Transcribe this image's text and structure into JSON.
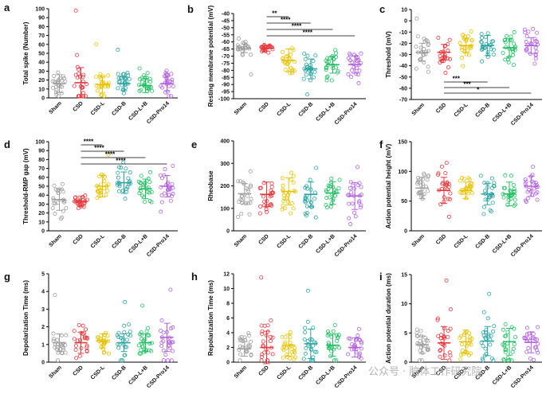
{
  "groups": [
    "Sham",
    "CSD",
    "CSD-L",
    "CSD-B",
    "CSD-L+B",
    "CSD-Pro14"
  ],
  "colors": [
    "#9e9e9e",
    "#e8383d",
    "#e8c200",
    "#2aa3a3",
    "#1fbf60",
    "#b35fe0"
  ],
  "watermark": "公众号 · 脑体工作研究院",
  "chart_data": [
    {
      "panel": "a",
      "type": "scatter",
      "ylabel": "Total spike (Number)",
      "ylim": [
        0,
        100
      ],
      "yticks": [
        0,
        10,
        20,
        30,
        40,
        50,
        60,
        70,
        80,
        90,
        100
      ],
      "means": [
        16,
        17,
        15,
        16,
        14,
        16
      ],
      "sds": [
        10,
        17,
        9,
        8,
        8,
        8
      ],
      "extremes": [
        [],
        [
          98
        ],
        [
          60
        ],
        [
          54
        ],
        [],
        []
      ],
      "sig": []
    },
    {
      "panel": "b",
      "type": "scatter",
      "ylabel": "Resting membrane potential (mV)",
      "ylim": [
        -100,
        -40
      ],
      "yticks": [
        -100,
        -95,
        -90,
        -85,
        -80,
        -75,
        -70,
        -65,
        -60,
        -55,
        -50,
        -45,
        -40
      ],
      "means": [
        -64.5,
        -64.5,
        -73,
        -79,
        -76,
        -76
      ],
      "sds": [
        3,
        2,
        8,
        7,
        6,
        6
      ],
      "extremes": [
        [
          -83
        ],
        [],
        [],
        [
          -97
        ],
        [],
        []
      ],
      "sig": [
        {
          "from": 1,
          "to": 2,
          "label": "**"
        },
        {
          "from": 1,
          "to": 3,
          "label": "****"
        },
        {
          "from": 1,
          "to": 4,
          "label": "****"
        },
        {
          "from": 1,
          "to": 5,
          "label": "****"
        }
      ]
    },
    {
      "panel": "c",
      "type": "scatter",
      "ylabel": "Threshold (mV)",
      "ylim": [
        -70,
        10
      ],
      "yticks": [
        -70,
        -60,
        -50,
        -40,
        -30,
        -20,
        -10,
        0,
        10
      ],
      "means": [
        -28,
        -28,
        -22,
        -22,
        -24,
        -22
      ],
      "sds": [
        8,
        7,
        6,
        9,
        8,
        7
      ],
      "extremes": [
        [
          2
        ],
        [],
        [],
        [],
        [],
        []
      ],
      "sig": [
        {
          "from": 1,
          "to": 3,
          "label": "***"
        },
        {
          "from": 1,
          "to": 4,
          "label": "***"
        },
        {
          "from": 1,
          "to": 5,
          "label": "*"
        }
      ]
    },
    {
      "panel": "d",
      "type": "scatter",
      "ylabel": "Threshold-RMP gap (mV)",
      "ylim": [
        0,
        100
      ],
      "yticks": [
        0,
        10,
        20,
        30,
        40,
        50,
        60,
        70,
        80,
        90,
        100
      ],
      "means": [
        35,
        33,
        50,
        54,
        47,
        50
      ],
      "sds": [
        12,
        6,
        12,
        12,
        11,
        12
      ],
      "extremes": [
        [],
        [],
        [],
        [],
        [],
        []
      ],
      "sig": [
        {
          "from": 1,
          "to": 2,
          "label": "****"
        },
        {
          "from": 1,
          "to": 3,
          "label": "****"
        },
        {
          "from": 1,
          "to": 4,
          "label": "****"
        },
        {
          "from": 1,
          "to": 5,
          "label": "****"
        }
      ]
    },
    {
      "panel": "e",
      "type": "scatter",
      "ylabel": "Rheobase",
      "ylim": [
        0,
        400
      ],
      "yticks": [
        0,
        100,
        200,
        300,
        400
      ],
      "means": [
        165,
        162,
        175,
        162,
        168,
        155
      ],
      "sds": [
        45,
        55,
        60,
        55,
        50,
        60
      ],
      "extremes": [
        [],
        [],
        [],
        [],
        [],
        []
      ],
      "sig": []
    },
    {
      "panel": "f",
      "type": "scatter",
      "ylabel": "Action potential height (mV)",
      "ylim": [
        0,
        150
      ],
      "yticks": [
        0,
        50,
        100,
        150
      ],
      "means": [
        72,
        68,
        68,
        62,
        62,
        75
      ],
      "sds": [
        18,
        22,
        14,
        18,
        20,
        17
      ],
      "extremes": [
        [],
        [],
        [],
        [],
        [],
        []
      ],
      "sig": []
    },
    {
      "panel": "g",
      "type": "scatter",
      "ylabel": "Depolarization Time (ms)",
      "ylim": [
        0,
        5
      ],
      "yticks": [
        0,
        1,
        2,
        3,
        4,
        5
      ],
      "means": [
        1.1,
        1.1,
        1.2,
        1.1,
        1.1,
        1.4
      ],
      "sds": [
        0.5,
        0.6,
        0.4,
        0.5,
        0.5,
        0.8
      ],
      "extremes": [
        [
          3.8
        ],
        [],
        [],
        [
          3.4
        ],
        [
          3.2
        ],
        [
          4.1
        ]
      ],
      "sig": []
    },
    {
      "panel": "h",
      "type": "scatter",
      "ylabel": "Repolarization Time (ms)",
      "ylim": [
        0,
        12
      ],
      "yticks": [
        0,
        2,
        4,
        6,
        8,
        10,
        12
      ],
      "means": [
        1.8,
        2.0,
        2.3,
        2.5,
        2.3,
        2.0
      ],
      "sds": [
        1.0,
        2.2,
        1.5,
        2.0,
        1.5,
        1.3
      ],
      "extremes": [
        [],
        [
          11.5
        ],
        [],
        [
          9.7
        ],
        [],
        []
      ],
      "sig": []
    },
    {
      "panel": "i",
      "type": "scatter",
      "ylabel": "Action potential duration (ms)",
      "ylim": [
        0,
        15
      ],
      "yticks": [
        0,
        5,
        10,
        15
      ],
      "means": [
        3.0,
        3.3,
        3.5,
        3.6,
        3.5,
        3.4
      ],
      "sds": [
        1.5,
        2.8,
        2.0,
        2.5,
        2.3,
        1.8
      ],
      "extremes": [
        [],
        [
          14
        ],
        [],
        [
          11.7
        ],
        [],
        []
      ],
      "sig": []
    }
  ]
}
